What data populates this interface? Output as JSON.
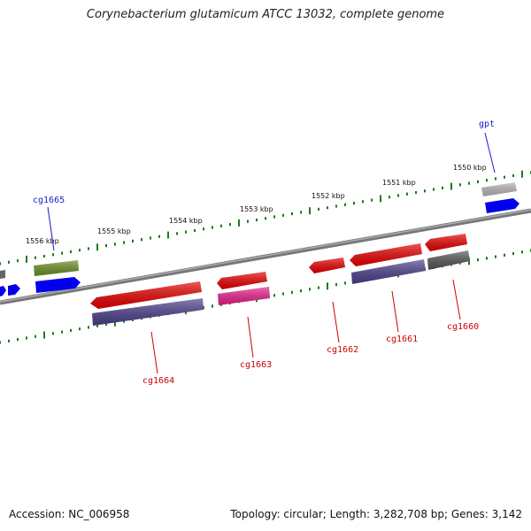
{
  "title": "Corynebacterium glutamicum ATCC 13032, complete genome",
  "footer": {
    "accession": "Accession: NC_006958",
    "topology": "Topology: circular; Length: 3,282,708 bp; Genes: 3,142"
  },
  "ticks": [
    {
      "label": "1550 kbp"
    },
    {
      "label": "1551 kbp"
    },
    {
      "label": "1552 kbp"
    },
    {
      "label": "1553 kbp"
    },
    {
      "label": "1554 kbp"
    },
    {
      "label": "1555 kbp"
    },
    {
      "label": "1556 kbp"
    }
  ],
  "gene_labels": [
    {
      "name": "gpt",
      "color": "#1a1acc"
    },
    {
      "name": "cg1665",
      "color": "#1a1acc"
    },
    {
      "name": "cg1664",
      "color": "#cc0000"
    },
    {
      "name": "cg1663",
      "color": "#cc0000"
    },
    {
      "name": "cg1662",
      "color": "#cc0000"
    },
    {
      "name": "cg1661",
      "color": "#cc0000"
    },
    {
      "name": "cg1660",
      "color": "#cc0000"
    }
  ],
  "colors": {
    "backbone": "#808080",
    "tick": "#1f7a1f",
    "red": "#e60000",
    "blue": "#0000ee",
    "purple": "#4b3f8a",
    "olive": "#6b8e23",
    "magenta": "#e6208a",
    "gray": "#666666",
    "lightgray": "#bbbbbb"
  }
}
